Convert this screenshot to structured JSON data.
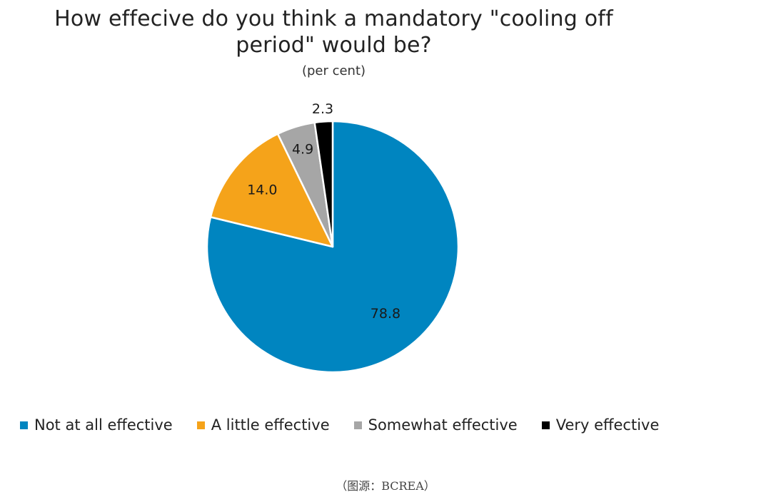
{
  "chart_data": {
    "type": "pie",
    "title_line1": "How effecive do you think a mandatory \"cooling off",
    "title_line2": "period\" would be?",
    "subtitle": "(per cent)",
    "start_angle_deg": 0,
    "direction": "clockwise",
    "slices": [
      {
        "name": "Not at all effective",
        "value": 78.8,
        "label": "78.8",
        "color": "#0085C0"
      },
      {
        "name": "A little effective",
        "value": 14.0,
        "label": "14.0",
        "color": "#F5A31A"
      },
      {
        "name": "Somewhat effective",
        "value": 4.9,
        "label": "4.9",
        "color": "#A6A6A6"
      },
      {
        "name": "Very effective",
        "value": 2.3,
        "label": "2.3",
        "color": "#000000"
      }
    ],
    "legend_position": "bottom"
  },
  "source": "（图源：BCREA）"
}
